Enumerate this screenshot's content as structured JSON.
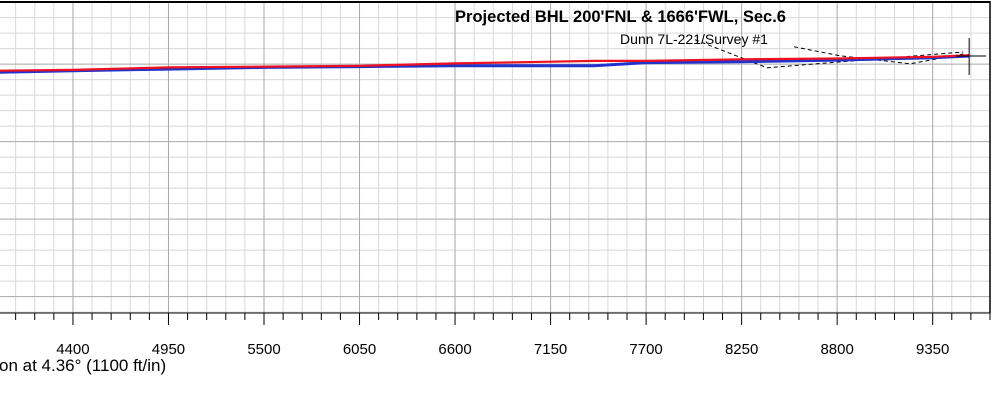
{
  "chart_data": {
    "type": "line",
    "x_ticks": [
      4400,
      4950,
      5500,
      6050,
      6600,
      7150,
      7700,
      8250,
      8800,
      9350
    ],
    "xlim": [
      3980,
      9680
    ],
    "ylim": [
      -305,
      75
    ],
    "grid": true,
    "series": [
      {
        "name": "Dunn 7L-221/Survey #1",
        "color": "#2233cc",
        "x": [
          3980,
          4400,
          4950,
          5500,
          6050,
          6600,
          7150,
          7400,
          7700,
          8250,
          8800,
          9350,
          9560
        ],
        "y": [
          -10,
          -8,
          -6,
          -4,
          -3,
          -2,
          -2,
          -2,
          2,
          3,
          5,
          8,
          10
        ]
      },
      {
        "name": "",
        "color": "#ee1122",
        "x": [
          3980,
          4400,
          4950,
          5500,
          6050,
          6600,
          7150,
          7400,
          7700,
          8250,
          8800,
          9350,
          9560
        ],
        "y": [
          -8,
          -7,
          -4,
          -3,
          -2,
          1,
          3,
          4,
          4,
          6,
          7,
          9,
          11
        ]
      }
    ],
    "target": {
      "x": 9560,
      "y": 10
    },
    "annotations": [
      {
        "text": "Projected BHL 200'FNL & 1666'FWL, Sec.6",
        "bold": true,
        "x": 6600,
        "y": 52
      },
      {
        "text": "Dunn 7L-221/Survey #1",
        "bold": false,
        "x": 7550,
        "y": 25
      }
    ],
    "caption": "on at 4.36° (1100 ft/in)"
  }
}
